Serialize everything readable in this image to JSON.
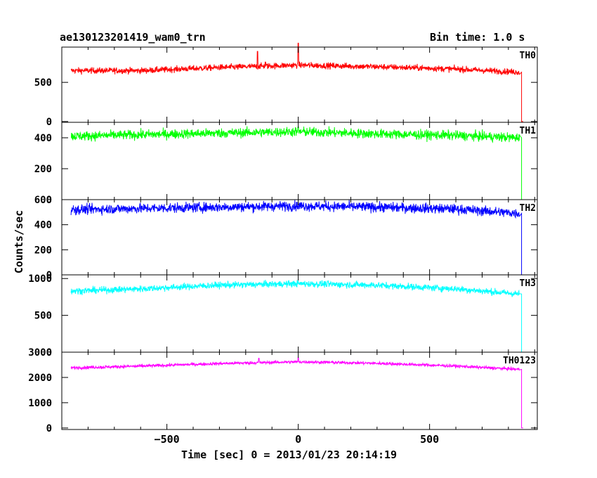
{
  "header": {
    "title": "ae130123201419_wam0_trn",
    "bin_time": "Bin time: 1.0 s"
  },
  "chart_data": {
    "type": "line",
    "xlabel": "Time [sec] 0 = 2013/01/23 20:14:19",
    "ylabel": "Counts/sec",
    "xlim": [
      -900,
      910
    ],
    "x_ticks": [
      -500,
      0,
      500
    ],
    "x_tick_labels": [
      "−500",
      "0",
      "500"
    ],
    "series": [
      {
        "name": "TH0",
        "color": "#ff0000",
        "ylim": [
          -10,
          950
        ],
        "y_ticks": [
          0,
          500
        ],
        "x_start": -865,
        "x_end": 842,
        "baseline": [
          [
            -865,
            650
          ],
          [
            -600,
            650
          ],
          [
            -300,
            690
          ],
          [
            0,
            720
          ],
          [
            300,
            700
          ],
          [
            600,
            670
          ],
          [
            842,
            630
          ]
        ],
        "noise": 28,
        "spikes": [
          [
            -155,
            895
          ],
          [
            -125,
            760
          ],
          [
            0,
            1000
          ]
        ],
        "drop": [
          850,
          0
        ]
      },
      {
        "name": "TH1",
        "color": "#00ff00",
        "ylim": [
          0,
          500
        ],
        "y_ticks": [
          0,
          200,
          400
        ],
        "x_start": -865,
        "x_end": 842,
        "baseline": [
          [
            -865,
            410
          ],
          [
            -600,
            420
          ],
          [
            -300,
            430
          ],
          [
            0,
            440
          ],
          [
            300,
            425
          ],
          [
            600,
            415
          ],
          [
            842,
            400
          ]
        ],
        "noise": 22,
        "spikes": [
          [
            0,
            470
          ]
        ],
        "drop": [
          850,
          0
        ]
      },
      {
        "name": "TH2",
        "color": "#0000ff",
        "ylim": [
          0,
          600
        ],
        "y_ticks": [
          0,
          200,
          400,
          600
        ],
        "x_start": -865,
        "x_end": 842,
        "baseline": [
          [
            -865,
            520
          ],
          [
            -600,
            530
          ],
          [
            -300,
            540
          ],
          [
            0,
            550
          ],
          [
            300,
            540
          ],
          [
            600,
            525
          ],
          [
            842,
            490
          ]
        ],
        "noise": 28,
        "spikes": [],
        "drop": [
          850,
          0
        ]
      },
      {
        "name": "TH3",
        "color": "#00ffff",
        "ylim": [
          0,
          1050
        ],
        "y_ticks": [
          0,
          500,
          1000
        ],
        "x_start": -865,
        "x_end": 842,
        "baseline": [
          [
            -865,
            830
          ],
          [
            -600,
            860
          ],
          [
            -300,
            910
          ],
          [
            0,
            930
          ],
          [
            300,
            910
          ],
          [
            600,
            860
          ],
          [
            842,
            790
          ]
        ],
        "noise": 32,
        "spikes": [],
        "drop": [
          850,
          0
        ]
      },
      {
        "name": "TH0123",
        "color": "#ff00ff",
        "ylim": [
          -60,
          3000
        ],
        "y_ticks": [
          0,
          1000,
          2000,
          3000
        ],
        "x_start": -865,
        "x_end": 842,
        "baseline": [
          [
            -865,
            2380
          ],
          [
            -600,
            2450
          ],
          [
            -300,
            2550
          ],
          [
            0,
            2620
          ],
          [
            300,
            2560
          ],
          [
            600,
            2450
          ],
          [
            842,
            2320
          ]
        ],
        "noise": 45,
        "spikes": [
          [
            -150,
            2760
          ],
          [
            0,
            2780
          ]
        ],
        "drop": [
          850,
          0
        ]
      }
    ]
  }
}
